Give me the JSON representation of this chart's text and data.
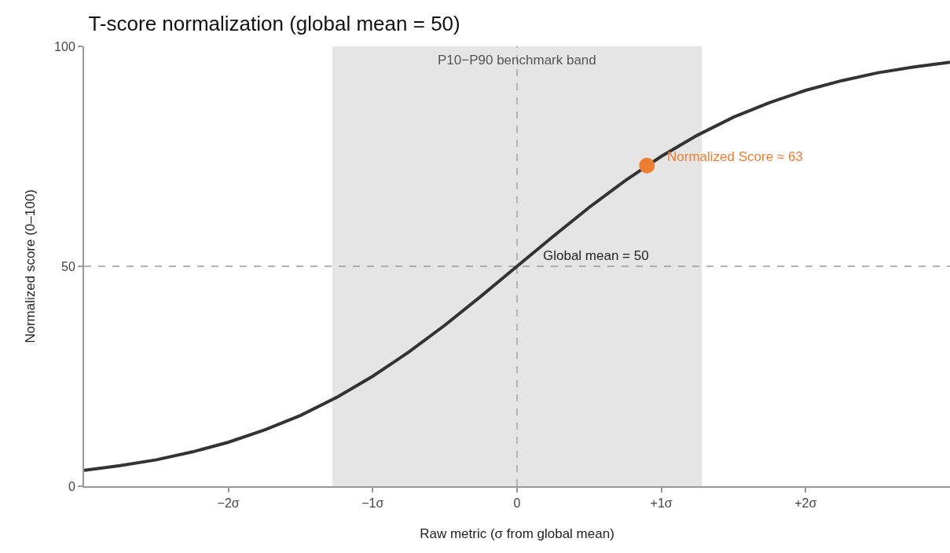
{
  "chart_data": {
    "type": "line",
    "title": "T-score normalization (global mean = 50)",
    "xlabel": "Raw metric (σ from global mean)",
    "ylabel": "Normalized score (0–100)",
    "xlim": [
      -3,
      3
    ],
    "ylim": [
      0,
      100
    ],
    "xticks": [
      {
        "value": -2,
        "label": "−2σ"
      },
      {
        "value": -1,
        "label": "−1σ"
      },
      0,
      {
        "value": 1,
        "label": "+1σ"
      },
      {
        "value": 2,
        "label": "+2σ"
      }
    ],
    "yticks": [
      0,
      50,
      100
    ],
    "grid": false,
    "x": [
      -3,
      -2.75,
      -2.5,
      -2.25,
      -2,
      -1.75,
      -1.5,
      -1.25,
      -1,
      -0.75,
      -0.5,
      -0.25,
      0,
      0.25,
      0.5,
      0.75,
      1,
      1.25,
      1.5,
      1.75,
      2,
      2.25,
      2.5,
      2.75,
      3
    ],
    "series": [
      {
        "color": "#333333",
        "marker": "none",
        "line_style": "solid",
        "values": [
          3.6,
          4.7,
          6.0,
          7.8,
          10,
          12.8,
          16.1,
          20.2,
          25,
          30.5,
          36.6,
          43.2,
          50,
          56.8,
          63.4,
          69.5,
          75,
          79.8,
          83.9,
          87.2,
          90,
          92.2,
          94.0,
          95.3,
          96.4
        ]
      },
      {
        "type": "scatter",
        "color": "#ed7d31",
        "marker": "circle",
        "x": [
          0.9
        ],
        "values": [
          72.9
        ]
      }
    ],
    "ref_lines": [
      {
        "axis": "x",
        "value": 0,
        "color": "#999999",
        "line_style": "dashed"
      },
      {
        "axis": "y",
        "value": 50,
        "label": "Global mean = 50",
        "color": "#999999",
        "line_style": "dashed"
      }
    ],
    "bands": [
      {
        "axis": "x",
        "from": -1.28,
        "to": 1.28,
        "label": "P10−P90 benchmark band",
        "color": "#e5e5e5"
      }
    ],
    "annotations": [
      {
        "text": "Normalized Score ≈ 63",
        "x": 0.9,
        "y": 72.9
      }
    ]
  }
}
